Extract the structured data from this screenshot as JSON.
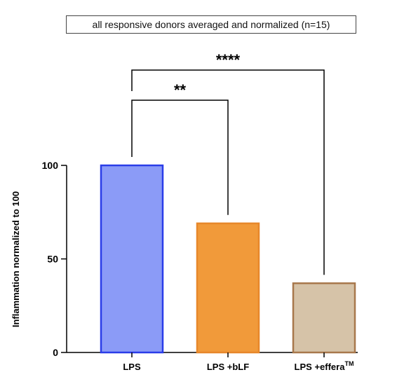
{
  "chart_data": {
    "type": "bar",
    "title": "all responsive donors averaged and normalized (n=15)",
    "xlabel": "",
    "ylabel": "Inflammation normalized to 100",
    "ylim": [
      0,
      100
    ],
    "yticks": [
      "0",
      "50",
      "100"
    ],
    "categories": [
      {
        "label": "LPS",
        "sup": ""
      },
      {
        "label": "LPS +bLF",
        "sup": ""
      },
      {
        "label": "LPS +effera",
        "sup": "TM"
      }
    ],
    "values": [
      100,
      69,
      37
    ],
    "colors": [
      {
        "fill": "#8b9bf7",
        "stroke": "#2a3de8"
      },
      {
        "fill": "#f19a3a",
        "stroke": "#e7872a"
      },
      {
        "fill": "#d6c3a8",
        "stroke": "#a8784c"
      }
    ],
    "significance": [
      {
        "from": 0,
        "to": 1,
        "label": "**"
      },
      {
        "from": 0,
        "to": 2,
        "label": "****"
      }
    ],
    "grid": false,
    "legend": "none"
  }
}
